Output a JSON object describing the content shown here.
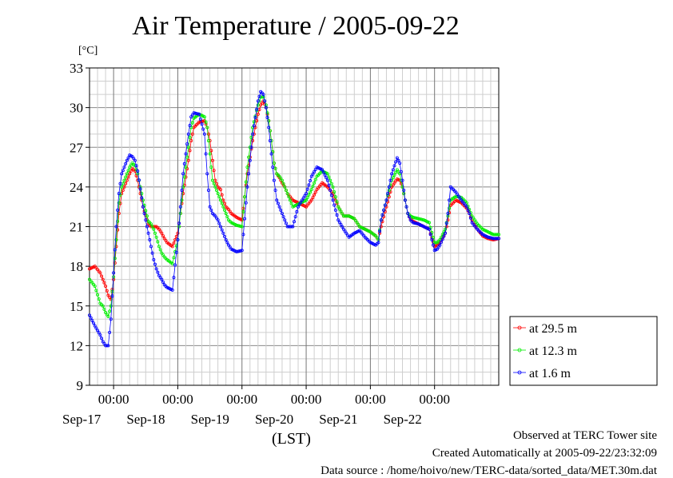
{
  "title": "Air Temperature / 2005-09-22",
  "unit_label": "[°C]",
  "xlabel": "(LST)",
  "footer": {
    "line1": "Observed at TERC Tower site",
    "line2": "Created Automatically at 2005-09-22/23:32:09",
    "line3": "Data source : /home/hoivo/new/TERC-data/sorted_data/MET.30m.dat"
  },
  "chart_data": {
    "type": "line",
    "title": "Air Temperature / 2005-09-22",
    "ylabel": "[°C]",
    "xlabel": "(LST)",
    "ylim": [
      9,
      33
    ],
    "yticks": [
      9,
      12,
      15,
      18,
      21,
      24,
      27,
      30,
      33
    ],
    "xlim": [
      "2005-09-16 15:00",
      "2005-09-22 24:00"
    ],
    "x_ticks": [
      {
        "time": "2005-09-17 00:00",
        "label": "00:00",
        "date": "Sep-17"
      },
      {
        "time": "2005-09-18 00:00",
        "label": "00:00",
        "date": "Sep-18"
      },
      {
        "time": "2005-09-19 00:00",
        "label": "00:00",
        "date": "Sep-19"
      },
      {
        "time": "2005-09-20 00:00",
        "label": "00:00",
        "date": "Sep-20"
      },
      {
        "time": "2005-09-21 00:00",
        "label": "00:00",
        "date": "Sep-21"
      },
      {
        "time": "2005-09-22 00:00",
        "label": "00:00",
        "date": "Sep-22"
      }
    ],
    "grid": true,
    "legend_position": "right",
    "colors": {
      "at 29.5 m": "#ff0000",
      "at 12.3 m": "#00ee00",
      "at 1.6 m": "#0000ff"
    },
    "series": [
      {
        "name": "at 29.5 m",
        "color": "#ff0000",
        "x": [
          "2005-09-16 15:00",
          "2005-09-16 17:00",
          "2005-09-16 19:00",
          "2005-09-16 20:00",
          "2005-09-16 21:00",
          "2005-09-16 22:00",
          "2005-09-16 23:00",
          "2005-09-17 00:00",
          "2005-09-17 01:00",
          "2005-09-17 02:00",
          "2005-09-17 03:00",
          "2005-09-17 05:00",
          "2005-09-17 06:00",
          "2005-09-17 07:00",
          "2005-09-17 08:00",
          "2005-09-17 09:00",
          "2005-09-17 11:00",
          "2005-09-17 13:00",
          "2005-09-17 14:00",
          "2005-09-17 15:00",
          "2005-09-17 16:00",
          "2005-09-17 17:00",
          "2005-09-17 18:00",
          "2005-09-17 19:00",
          "2005-09-17 20:00",
          "2005-09-17 22:00",
          "2005-09-18 00:00",
          "2005-09-18 02:00",
          "2005-09-18 04:00",
          "2005-09-18 05:00",
          "2005-09-18 06:00",
          "2005-09-18 08:00",
          "2005-09-18 10:00",
          "2005-09-18 11:00",
          "2005-09-18 12:00",
          "2005-09-18 13:00",
          "2005-09-18 14:00",
          "2005-09-18 15:00",
          "2005-09-18 16:00",
          "2005-09-18 17:00",
          "2005-09-18 18:00",
          "2005-09-18 19:00",
          "2005-09-18 20:00",
          "2005-09-18 22:00",
          "2005-09-19 00:00",
          "2005-09-19 02:00",
          "2005-09-19 04:00",
          "2005-09-19 06:00",
          "2005-09-19 07:00",
          "2005-09-19 08:00",
          "2005-09-19 09:00",
          "2005-09-19 10:00",
          "2005-09-19 11:00",
          "2005-09-19 12:00",
          "2005-09-19 13:00",
          "2005-09-19 14:00",
          "2005-09-19 15:00",
          "2005-09-19 16:00",
          "2005-09-19 17:00",
          "2005-09-19 19:00",
          "2005-09-19 21:00",
          "2005-09-20 00:00",
          "2005-09-20 02:00",
          "2005-09-20 04:00",
          "2005-09-20 06:00",
          "2005-09-20 08:00",
          "2005-09-20 10:00",
          "2005-09-20 12:00",
          "2005-09-20 14:00",
          "2005-09-20 16:00",
          "2005-09-20 18:00",
          "2005-09-20 20:00",
          "2005-09-20 22:00",
          "2005-09-21 00:00",
          "2005-09-21 02:00",
          "2005-09-21 03:00",
          "2005-09-21 04:00",
          "2005-09-21 06:00",
          "2005-09-21 08:00",
          "2005-09-21 10:00",
          "2005-09-21 11:00",
          "2005-09-21 12:00",
          "2005-09-21 13:00",
          "2005-09-21 14:00",
          "2005-09-21 15:00",
          "2005-09-21 16:00",
          "2005-09-21 18:00",
          "2005-09-21 20:00",
          "2005-09-21 22:00",
          "2005-09-22 00:00",
          "2005-09-22 01:00",
          "2005-09-22 02:00",
          "2005-09-22 04:00",
          "2005-09-22 05:00",
          "2005-09-22 06:00",
          "2005-09-22 08:00",
          "2005-09-22 10:00",
          "2005-09-22 12:00",
          "2005-09-22 13:00",
          "2005-09-22 14:00",
          "2005-09-22 16:00",
          "2005-09-22 18:00",
          "2005-09-22 20:00",
          "2005-09-22 22:00",
          "2005-09-22 24:00"
        ],
        "y": [
          17.8,
          18.0,
          17.5,
          17.0,
          16.5,
          15.8,
          15.5,
          17.0,
          19.5,
          22.0,
          23.5,
          24.5,
          25.0,
          25.4,
          25.2,
          24.5,
          22.5,
          21.2,
          21.0,
          21.0,
          21.0,
          20.8,
          20.5,
          20.1,
          19.8,
          19.5,
          20.5,
          23.5,
          26.0,
          27.5,
          28.5,
          28.9,
          29.0,
          28.5,
          27.5,
          26.0,
          24.5,
          24.0,
          23.8,
          23.0,
          22.5,
          22.3,
          22.0,
          21.7,
          21.5,
          25.0,
          27.5,
          29.5,
          30.2,
          30.5,
          30.0,
          29.0,
          27.5,
          25.8,
          25.0,
          24.7,
          24.3,
          24.0,
          23.5,
          23.0,
          22.8,
          22.5,
          23.0,
          23.8,
          24.3,
          24.0,
          23.5,
          22.5,
          21.8,
          21.8,
          21.6,
          21.0,
          20.8,
          20.6,
          20.3,
          20.0,
          21.0,
          22.5,
          24.0,
          24.6,
          24.5,
          24.0,
          23.0,
          22.0,
          21.6,
          21.4,
          21.2,
          21.0,
          20.8,
          19.5,
          19.6,
          19.8,
          20.5,
          21.5,
          22.6,
          23.0,
          22.8,
          22.4,
          22.0,
          21.5,
          20.8,
          20.3,
          20.1,
          20.0,
          20.1
        ]
      },
      {
        "name": "at 12.3 m",
        "color": "#00ee00",
        "x": [
          "2005-09-16 15:00",
          "2005-09-16 17:00",
          "2005-09-16 19:00",
          "2005-09-16 20:00",
          "2005-09-16 21:00",
          "2005-09-16 22:00",
          "2005-09-16 23:00",
          "2005-09-17 00:00",
          "2005-09-17 01:00",
          "2005-09-17 02:00",
          "2005-09-17 03:00",
          "2005-09-17 05:00",
          "2005-09-17 06:00",
          "2005-09-17 07:00",
          "2005-09-17 08:00",
          "2005-09-17 09:00",
          "2005-09-17 11:00",
          "2005-09-17 13:00",
          "2005-09-17 14:00",
          "2005-09-17 15:00",
          "2005-09-17 16:00",
          "2005-09-17 17:00",
          "2005-09-17 18:00",
          "2005-09-17 19:00",
          "2005-09-17 20:00",
          "2005-09-17 22:00",
          "2005-09-18 00:00",
          "2005-09-18 02:00",
          "2005-09-18 04:00",
          "2005-09-18 05:00",
          "2005-09-18 06:00",
          "2005-09-18 08:00",
          "2005-09-18 10:00",
          "2005-09-18 11:00",
          "2005-09-18 12:00",
          "2005-09-18 13:00",
          "2005-09-18 14:00",
          "2005-09-18 15:00",
          "2005-09-18 16:00",
          "2005-09-18 17:00",
          "2005-09-18 18:00",
          "2005-09-18 19:00",
          "2005-09-18 20:00",
          "2005-09-18 22:00",
          "2005-09-19 00:00",
          "2005-09-19 02:00",
          "2005-09-19 04:00",
          "2005-09-19 06:00",
          "2005-09-19 07:00",
          "2005-09-19 08:00",
          "2005-09-19 09:00",
          "2005-09-19 10:00",
          "2005-09-19 11:00",
          "2005-09-19 12:00",
          "2005-09-19 13:00",
          "2005-09-19 14:00",
          "2005-09-19 15:00",
          "2005-09-19 16:00",
          "2005-09-19 17:00",
          "2005-09-19 19:00",
          "2005-09-19 21:00",
          "2005-09-20 00:00",
          "2005-09-20 02:00",
          "2005-09-20 04:00",
          "2005-09-20 06:00",
          "2005-09-20 08:00",
          "2005-09-20 10:00",
          "2005-09-20 12:00",
          "2005-09-20 14:00",
          "2005-09-20 16:00",
          "2005-09-20 18:00",
          "2005-09-20 20:00",
          "2005-09-20 22:00",
          "2005-09-21 00:00",
          "2005-09-21 02:00",
          "2005-09-21 03:00",
          "2005-09-21 04:00",
          "2005-09-21 06:00",
          "2005-09-21 08:00",
          "2005-09-21 10:00",
          "2005-09-21 11:00",
          "2005-09-21 12:00",
          "2005-09-21 13:00",
          "2005-09-21 14:00",
          "2005-09-21 15:00",
          "2005-09-21 16:00",
          "2005-09-21 18:00",
          "2005-09-21 20:00",
          "2005-09-21 22:00",
          "2005-09-22 00:00",
          "2005-09-22 01:00",
          "2005-09-22 02:00",
          "2005-09-22 04:00",
          "2005-09-22 05:00",
          "2005-09-22 06:00",
          "2005-09-22 08:00",
          "2005-09-22 10:00",
          "2005-09-22 12:00",
          "2005-09-22 13:00",
          "2005-09-22 14:00",
          "2005-09-22 16:00",
          "2005-09-22 18:00",
          "2005-09-22 20:00",
          "2005-09-22 22:00",
          "2005-09-22 24:00"
        ],
        "y": [
          17.0,
          16.5,
          15.2,
          15.0,
          14.5,
          14.2,
          15.0,
          17.2,
          20.0,
          22.8,
          24.0,
          25.0,
          25.5,
          25.8,
          25.6,
          25.0,
          23.0,
          21.4,
          21.2,
          20.8,
          20.2,
          19.5,
          19.0,
          18.7,
          18.5,
          18.2,
          20.0,
          24.0,
          27.0,
          28.5,
          29.2,
          29.5,
          29.3,
          28.5,
          26.5,
          24.5,
          24.0,
          23.5,
          23.0,
          22.5,
          22.0,
          21.5,
          21.3,
          21.1,
          21.0,
          25.5,
          28.5,
          30.2,
          30.8,
          30.8,
          30.2,
          29.0,
          27.5,
          25.8,
          25.0,
          24.8,
          24.5,
          24.0,
          23.5,
          22.5,
          22.7,
          23.0,
          23.8,
          24.8,
          25.2,
          25.0,
          24.0,
          22.5,
          21.8,
          21.8,
          21.6,
          21.0,
          20.8,
          20.6,
          20.3,
          20.0,
          21.5,
          23.0,
          24.5,
          25.3,
          25.0,
          24.0,
          23.0,
          22.0,
          21.8,
          21.7,
          21.6,
          21.5,
          21.3,
          19.8,
          19.8,
          20.0,
          20.8,
          21.8,
          23.0,
          23.3,
          23.2,
          22.8,
          22.3,
          21.8,
          21.2,
          20.8,
          20.6,
          20.4,
          20.4
        ]
      },
      {
        "name": "at 1.6 m",
        "color": "#0000ff",
        "x": [
          "2005-09-16 15:00",
          "2005-09-16 17:00",
          "2005-09-16 19:00",
          "2005-09-16 20:00",
          "2005-09-16 21:00",
          "2005-09-16 22:00",
          "2005-09-16 23:00",
          "2005-09-17 00:00",
          "2005-09-17 01:00",
          "2005-09-17 02:00",
          "2005-09-17 03:00",
          "2005-09-17 05:00",
          "2005-09-17 06:00",
          "2005-09-17 07:00",
          "2005-09-17 08:00",
          "2005-09-17 09:00",
          "2005-09-17 11:00",
          "2005-09-17 13:00",
          "2005-09-17 14:00",
          "2005-09-17 15:00",
          "2005-09-17 16:00",
          "2005-09-17 17:00",
          "2005-09-17 18:00",
          "2005-09-17 19:00",
          "2005-09-17 20:00",
          "2005-09-17 22:00",
          "2005-09-18 00:00",
          "2005-09-18 02:00",
          "2005-09-18 04:00",
          "2005-09-18 05:00",
          "2005-09-18 06:00",
          "2005-09-18 08:00",
          "2005-09-18 10:00",
          "2005-09-18 11:00",
          "2005-09-18 12:00",
          "2005-09-18 13:00",
          "2005-09-18 14:00",
          "2005-09-18 15:00",
          "2005-09-18 16:00",
          "2005-09-18 17:00",
          "2005-09-18 18:00",
          "2005-09-18 19:00",
          "2005-09-18 20:00",
          "2005-09-18 22:00",
          "2005-09-19 00:00",
          "2005-09-19 02:00",
          "2005-09-19 04:00",
          "2005-09-19 06:00",
          "2005-09-19 07:00",
          "2005-09-19 08:00",
          "2005-09-19 09:00",
          "2005-09-19 10:00",
          "2005-09-19 11:00",
          "2005-09-19 12:00",
          "2005-09-19 13:00",
          "2005-09-19 14:00",
          "2005-09-19 15:00",
          "2005-09-19 16:00",
          "2005-09-19 17:00",
          "2005-09-19 19:00",
          "2005-09-19 21:00",
          "2005-09-20 00:00",
          "2005-09-20 02:00",
          "2005-09-20 04:00",
          "2005-09-20 06:00",
          "2005-09-20 08:00",
          "2005-09-20 10:00",
          "2005-09-20 12:00",
          "2005-09-20 14:00",
          "2005-09-20 16:00",
          "2005-09-20 18:00",
          "2005-09-20 20:00",
          "2005-09-20 22:00",
          "2005-09-21 00:00",
          "2005-09-21 02:00",
          "2005-09-21 03:00",
          "2005-09-21 04:00",
          "2005-09-21 06:00",
          "2005-09-21 08:00",
          "2005-09-21 10:00",
          "2005-09-21 11:00",
          "2005-09-21 12:00",
          "2005-09-21 13:00",
          "2005-09-21 14:00",
          "2005-09-21 15:00",
          "2005-09-21 16:00",
          "2005-09-21 18:00",
          "2005-09-21 20:00",
          "2005-09-21 22:00",
          "2005-09-22 00:00",
          "2005-09-22 01:00",
          "2005-09-22 02:00",
          "2005-09-22 04:00",
          "2005-09-22 05:00",
          "2005-09-22 06:00",
          "2005-09-22 08:00",
          "2005-09-22 10:00",
          "2005-09-22 12:00",
          "2005-09-22 13:00",
          "2005-09-22 14:00",
          "2005-09-22 16:00",
          "2005-09-22 18:00",
          "2005-09-22 20:00",
          "2005-09-22 22:00",
          "2005-09-22 24:00"
        ],
        "y": [
          14.3,
          13.5,
          12.8,
          12.3,
          12.0,
          12.0,
          14.0,
          17.5,
          21.0,
          23.5,
          25.0,
          26.0,
          26.4,
          26.3,
          26.0,
          25.2,
          22.5,
          20.5,
          19.5,
          18.5,
          17.8,
          17.3,
          17.0,
          16.6,
          16.4,
          16.2,
          20.0,
          25.0,
          28.0,
          29.3,
          29.6,
          29.5,
          28.0,
          25.0,
          22.5,
          22.0,
          21.8,
          21.5,
          21.0,
          20.5,
          20.0,
          19.6,
          19.3,
          19.1,
          19.2,
          24.0,
          28.0,
          30.5,
          31.2,
          31.0,
          30.0,
          28.5,
          26.5,
          24.5,
          23.0,
          22.5,
          22.0,
          21.5,
          21.0,
          21.0,
          22.5,
          23.5,
          24.8,
          25.5,
          25.3,
          24.5,
          23.0,
          21.5,
          20.8,
          20.2,
          20.5,
          20.7,
          20.2,
          19.8,
          19.6,
          19.8,
          21.5,
          23.0,
          25.0,
          26.2,
          25.8,
          24.5,
          23.0,
          22.0,
          21.5,
          21.3,
          21.2,
          21.0,
          20.8,
          19.2,
          19.3,
          19.6,
          20.5,
          22.0,
          24.0,
          23.6,
          23.0,
          22.5,
          22.0,
          21.3,
          20.8,
          20.4,
          20.2,
          20.1,
          20.1
        ]
      }
    ]
  }
}
